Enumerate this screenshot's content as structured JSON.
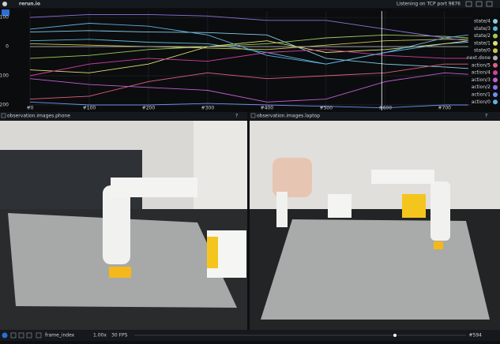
{
  "top_bar": {
    "title": "rerun.io",
    "status": "Listening on TCP port 9876"
  },
  "plot": {
    "chart_data": {
      "type": "line",
      "x": [
        0,
        100,
        200,
        300,
        400,
        500,
        600,
        700,
        740
      ],
      "xlim": [
        0,
        747
      ],
      "ylim": [
        -219,
        122
      ],
      "xticks": [
        {
          "value": 0,
          "label": "#0"
        },
        {
          "value": 100,
          "label": "#100"
        },
        {
          "value": 200,
          "label": "#200"
        },
        {
          "value": 300,
          "label": "#300"
        },
        {
          "value": 400,
          "label": "#400"
        },
        {
          "value": 500,
          "label": "#500"
        },
        {
          "value": 600,
          "label": "#600"
        },
        {
          "value": 700,
          "label": "#700"
        }
      ],
      "yticks": [
        100,
        0,
        -100,
        -200
      ],
      "grid": true,
      "cursor": 594,
      "series": [
        {
          "name": "state/4",
          "color": "#86cde6",
          "values": [
            50,
            55,
            50,
            48,
            40,
            -40,
            -60,
            -70,
            -75
          ]
        },
        {
          "name": "state/3",
          "color": "#5bb5d5",
          "values": [
            20,
            25,
            15,
            10,
            -20,
            -60,
            -20,
            10,
            15
          ]
        },
        {
          "name": "state/2",
          "color": "#9ecb5a",
          "values": [
            -40,
            -30,
            -10,
            0,
            10,
            30,
            40,
            35,
            30
          ]
        },
        {
          "name": "state/1",
          "color": "#e0e070",
          "values": [
            -80,
            -90,
            -60,
            0,
            20,
            -20,
            -10,
            10,
            20
          ]
        },
        {
          "name": "state/0",
          "color": "#c8c850",
          "values": [
            10,
            5,
            0,
            -5,
            -10,
            5,
            20,
            25,
            25
          ]
        },
        {
          "name": "next.done",
          "color": "#b0b0b0",
          "values": [
            0,
            0,
            0,
            0,
            0,
            0,
            0,
            0,
            0
          ]
        },
        {
          "name": "action/5",
          "color": "#e06080",
          "values": [
            -180,
            -170,
            -120,
            -90,
            -110,
            -100,
            -90,
            -60,
            -60
          ]
        },
        {
          "name": "action/4",
          "color": "#d040a0",
          "values": [
            -100,
            -60,
            -40,
            -50,
            -20,
            -10,
            -30,
            -40,
            -40
          ]
        },
        {
          "name": "action/3",
          "color": "#c060d0",
          "values": [
            -110,
            -130,
            -140,
            -150,
            -190,
            -180,
            -120,
            -90,
            -95
          ]
        },
        {
          "name": "action/2",
          "color": "#9070e0",
          "values": [
            100,
            110,
            110,
            105,
            90,
            90,
            60,
            30,
            20
          ]
        },
        {
          "name": "action/1",
          "color": "#7090f0",
          "values": [
            -190,
            -200,
            -200,
            -195,
            -200,
            -205,
            -210,
            -200,
            -200
          ]
        },
        {
          "name": "action/0",
          "color": "#60b0e0",
          "values": [
            60,
            80,
            70,
            40,
            -30,
            -60,
            -20,
            30,
            40
          ]
        }
      ]
    }
  },
  "panels": [
    {
      "title": "observation.images.phone"
    },
    {
      "title": "observation.images.laptop"
    }
  ],
  "timeline": {
    "timeline": "frame_index",
    "speed": "1.00x",
    "fps": "30 FPS",
    "frame": "#594"
  }
}
